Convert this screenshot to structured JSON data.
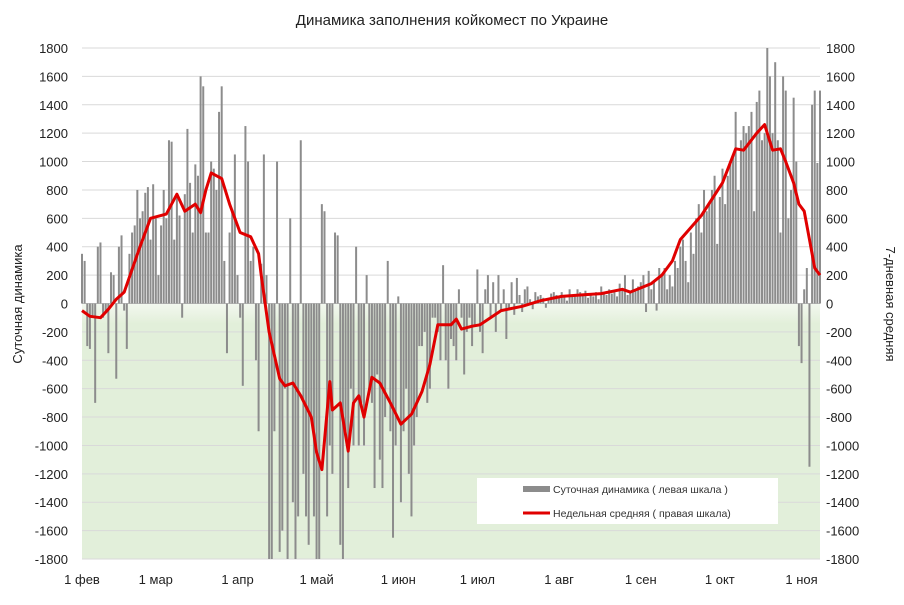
{
  "chart_data": {
    "type": "bar+line",
    "title": "Динамика заполнения койкомест по Украине",
    "ylabel_left": "Суточная динамика",
    "ylabel_right": "7-дневная средняя",
    "ylim": [
      -1800,
      1800
    ],
    "y_ticks": [
      1800,
      1600,
      1400,
      1200,
      1000,
      800,
      600,
      400,
      200,
      0,
      -200,
      -400,
      -600,
      -800,
      -1000,
      -1200,
      -1400,
      -1600,
      -1800
    ],
    "x_tick_labels": [
      "1 фев",
      "1 мар",
      "1 апр",
      "1 май",
      "1 июн",
      "1 июл",
      "1 авг",
      "1 сен",
      "1 окт",
      "1 ноя"
    ],
    "x_range": [
      "02-01",
      "11-08"
    ],
    "grid": true,
    "negative_region_fill": "#e2efda",
    "legend_placement": "bottom-right",
    "series": [
      {
        "name": "Суточная динамика ( левая шкала )",
        "type": "bar",
        "axis": "left",
        "color": "#8c8c8c",
        "months": [
          {
            "month": "02",
            "values": [
              350,
              300,
              -300,
              -320,
              -100,
              -700,
              400,
              430,
              -100,
              -50,
              -350,
              220,
              200,
              -530,
              400,
              480,
              -50,
              -320,
              350,
              500,
              550,
              800,
              600,
              650,
              780,
              820,
              450,
              840
            ]
          },
          {
            "month": "03",
            "values": [
              600,
              200,
              550,
              800,
              600,
              1150,
              1140,
              450,
              750,
              620,
              -100,
              770,
              1230,
              850,
              500,
              980,
              900,
              1600,
              1530,
              500,
              500,
              1000,
              950,
              800,
              1350,
              1530,
              300,
              -350,
              500,
              650,
              1050
            ]
          },
          {
            "month": "04",
            "values": [
              200,
              -100,
              -580,
              1250,
              1000,
              300,
              400,
              -400,
              -900,
              280,
              1050,
              200,
              -1800,
              -1800,
              -900,
              1000,
              -1750,
              -1600,
              -600,
              -1800,
              600,
              -1400,
              -1800,
              -1500,
              1150,
              -1200,
              -1500,
              -1700,
              -800,
              -1500
            ]
          },
          {
            "month": "05",
            "values": [
              -1800,
              -1800,
              700,
              650,
              -1500,
              -1000,
              -1200,
              500,
              480,
              -1700,
              -1800,
              -900,
              -1300,
              -600,
              -1000,
              400,
              -1000,
              -700,
              -1000,
              200,
              -600,
              -700,
              -1300,
              -500,
              -1100,
              -1300,
              -800,
              300,
              -900,
              -1650,
              -1000
            ]
          },
          {
            "month": "06",
            "values": [
              50,
              -1400,
              -900,
              -600,
              -1200,
              -1500,
              -1000,
              -800,
              -300,
              -300,
              -200,
              -700,
              -600,
              -100,
              -100,
              -200,
              -400,
              270,
              -400,
              -600,
              -250,
              -300,
              -400,
              100,
              -100,
              -500,
              -200,
              -100,
              -300,
              -150
            ]
          },
          {
            "month": "07",
            "values": [
              240,
              -200,
              -350,
              100,
              200,
              -100,
              150,
              -200,
              200,
              -50,
              100,
              -250,
              -30,
              150,
              -80,
              180,
              60,
              -60,
              100,
              120,
              30,
              -40,
              80,
              50,
              60,
              40,
              -30,
              30,
              70,
              80,
              60
            ]
          },
          {
            "month": "08",
            "values": [
              40,
              80,
              60,
              20,
              100,
              60,
              50,
              100,
              80,
              70,
              90,
              40,
              60,
              50,
              80,
              30,
              120,
              80,
              60,
              100,
              70,
              80,
              50,
              140,
              100,
              200,
              60,
              80,
              170,
              90,
              120
            ]
          },
          {
            "month": "09",
            "values": [
              150,
              200,
              -60,
              230,
              100,
              160,
              -50,
              250,
              200,
              250,
              100,
              200,
              120,
              300,
              250,
              400,
              450,
              300,
              150,
              500,
              350,
              600,
              700,
              500,
              800,
              650,
              700,
              800,
              900,
              420
            ]
          },
          {
            "month": "10",
            "values": [
              750,
              950,
              700,
              900,
              1000,
              1050,
              1350,
              800,
              1150,
              1250,
              1200,
              1250,
              1350,
              650,
              1420,
              1500,
              1150,
              1200,
              1800,
              1600,
              1200,
              1700,
              1150,
              500,
              1600,
              1500,
              600,
              800,
              1450,
              1000,
              -300
            ]
          },
          {
            "month": "11",
            "values": [
              -420,
              100,
              250,
              -1150,
              1400,
              1500,
              990,
              1500
            ]
          }
        ]
      },
      {
        "name": "Недельная средняя ( правая шкала)",
        "type": "line",
        "axis": "right",
        "color": "#e00000",
        "points": [
          [
            "02-01",
            -50
          ],
          [
            "02-04",
            -90
          ],
          [
            "02-08",
            -100
          ],
          [
            "02-11",
            -40
          ],
          [
            "02-14",
            30
          ],
          [
            "02-17",
            80
          ],
          [
            "02-23",
            400
          ],
          [
            "02-27",
            600
          ],
          [
            "03-05",
            630
          ],
          [
            "03-09",
            770
          ],
          [
            "03-12",
            650
          ],
          [
            "03-16",
            700
          ],
          [
            "03-18",
            640
          ],
          [
            "03-20",
            800
          ],
          [
            "03-22",
            920
          ],
          [
            "03-26",
            880
          ],
          [
            "03-29",
            700
          ],
          [
            "04-02",
            500
          ],
          [
            "04-06",
            470
          ],
          [
            "04-09",
            350
          ],
          [
            "04-10",
            200
          ],
          [
            "04-13",
            -200
          ],
          [
            "04-17",
            -530
          ],
          [
            "04-19",
            -580
          ],
          [
            "04-22",
            -560
          ],
          [
            "04-25",
            -650
          ],
          [
            "04-29",
            -800
          ],
          [
            "05-01",
            -1050
          ],
          [
            "05-03",
            -1170
          ],
          [
            "05-06",
            -550
          ],
          [
            "05-07",
            -750
          ],
          [
            "05-10",
            -700
          ],
          [
            "05-13",
            -1040
          ],
          [
            "05-15",
            -700
          ],
          [
            "05-17",
            -650
          ],
          [
            "05-19",
            -800
          ],
          [
            "05-22",
            -520
          ],
          [
            "05-25",
            -560
          ],
          [
            "05-29",
            -700
          ],
          [
            "06-02",
            -850
          ],
          [
            "06-06",
            -780
          ],
          [
            "06-10",
            -620
          ],
          [
            "06-13",
            -430
          ],
          [
            "06-16",
            -150
          ],
          [
            "06-21",
            -150
          ],
          [
            "06-23",
            -110
          ],
          [
            "06-25",
            -180
          ],
          [
            "06-29",
            -160
          ],
          [
            "07-02",
            -150
          ],
          [
            "07-06",
            -100
          ],
          [
            "07-10",
            -50
          ],
          [
            "07-18",
            -20
          ],
          [
            "07-25",
            20
          ],
          [
            "08-02",
            50
          ],
          [
            "08-09",
            60
          ],
          [
            "08-17",
            70
          ],
          [
            "08-25",
            100
          ],
          [
            "08-28",
            80
          ],
          [
            "09-01",
            110
          ],
          [
            "09-05",
            140
          ],
          [
            "09-09",
            200
          ],
          [
            "09-13",
            300
          ],
          [
            "09-16",
            450
          ],
          [
            "09-24",
            620
          ],
          [
            "10-02",
            850
          ],
          [
            "10-07",
            1090
          ],
          [
            "10-10",
            1080
          ],
          [
            "10-15",
            1200
          ],
          [
            "10-18",
            1260
          ],
          [
            "10-21",
            1080
          ],
          [
            "10-24",
            1090
          ],
          [
            "10-26",
            1000
          ],
          [
            "10-29",
            850
          ],
          [
            "10-31",
            700
          ],
          [
            "11-02",
            650
          ],
          [
            "11-04",
            450
          ],
          [
            "11-06",
            250
          ],
          [
            "11-08",
            200
          ]
        ]
      }
    ]
  }
}
